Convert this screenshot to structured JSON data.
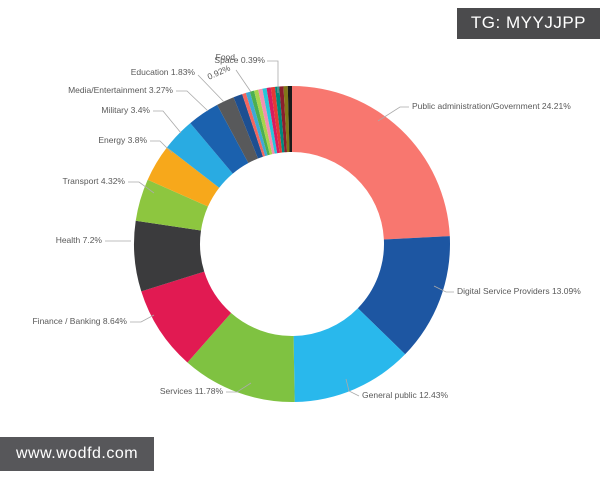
{
  "watermarks": {
    "tag": "TG: MYYJJPP",
    "url": "www.wodfd.com"
  },
  "colors": {
    "background": "#ffffff",
    "watermark_bg": "#4b4b4d",
    "watermark_text": "#ffffff",
    "label_text": "#595959",
    "leader_line": "#aaaaaa"
  },
  "chart_data": {
    "type": "pie",
    "subtype": "donut",
    "title": "",
    "start_angle": "12 o'clock, clockwise",
    "legend_position": "none (callout leader-line labels)",
    "hole_fill": "#ffffff",
    "segments": [
      {
        "label": "Public administration/Government",
        "value": 24.21,
        "color": "#f8776f"
      },
      {
        "label": "Digital Service Providers",
        "value": 13.09,
        "color": "#1d56a2"
      },
      {
        "label": "General public",
        "value": 12.43,
        "color": "#29b8ec"
      },
      {
        "label": "Services",
        "value": 11.78,
        "color": "#7fc241"
      },
      {
        "label": "Finance / Banking",
        "value": 8.64,
        "color": "#e11a52"
      },
      {
        "label": "Health",
        "value": 7.2,
        "color": "#3b3b3d"
      },
      {
        "label": "Transport",
        "value": 4.32,
        "color": "#8dc63f"
      },
      {
        "label": "Energy",
        "value": 3.8,
        "color": "#f7a81b"
      },
      {
        "label": "Military",
        "value": 3.4,
        "color": "#29abe2"
      },
      {
        "label": "Media/Entertainment",
        "value": 3.27,
        "color": "#1b61ae"
      },
      {
        "label": "Education",
        "value": 1.83,
        "color": "#58595b"
      },
      {
        "label": "Food",
        "value": 0.92,
        "color": "#1d4f91"
      },
      {
        "label": "Space",
        "value": 0.39,
        "color": "#f4665e"
      }
    ],
    "unlabeled_slivers": {
      "note": "thin unlabeled slices before 12 o'clock",
      "total_value": 4.72,
      "colors": [
        "#3fa9d6",
        "#4caf50",
        "#a8d44c",
        "#f48fb1",
        "#26c6da",
        "#d81b60",
        "#e53935",
        "#00897b",
        "#8b1e2d",
        "#827717",
        "#1a1a1a"
      ]
    }
  }
}
